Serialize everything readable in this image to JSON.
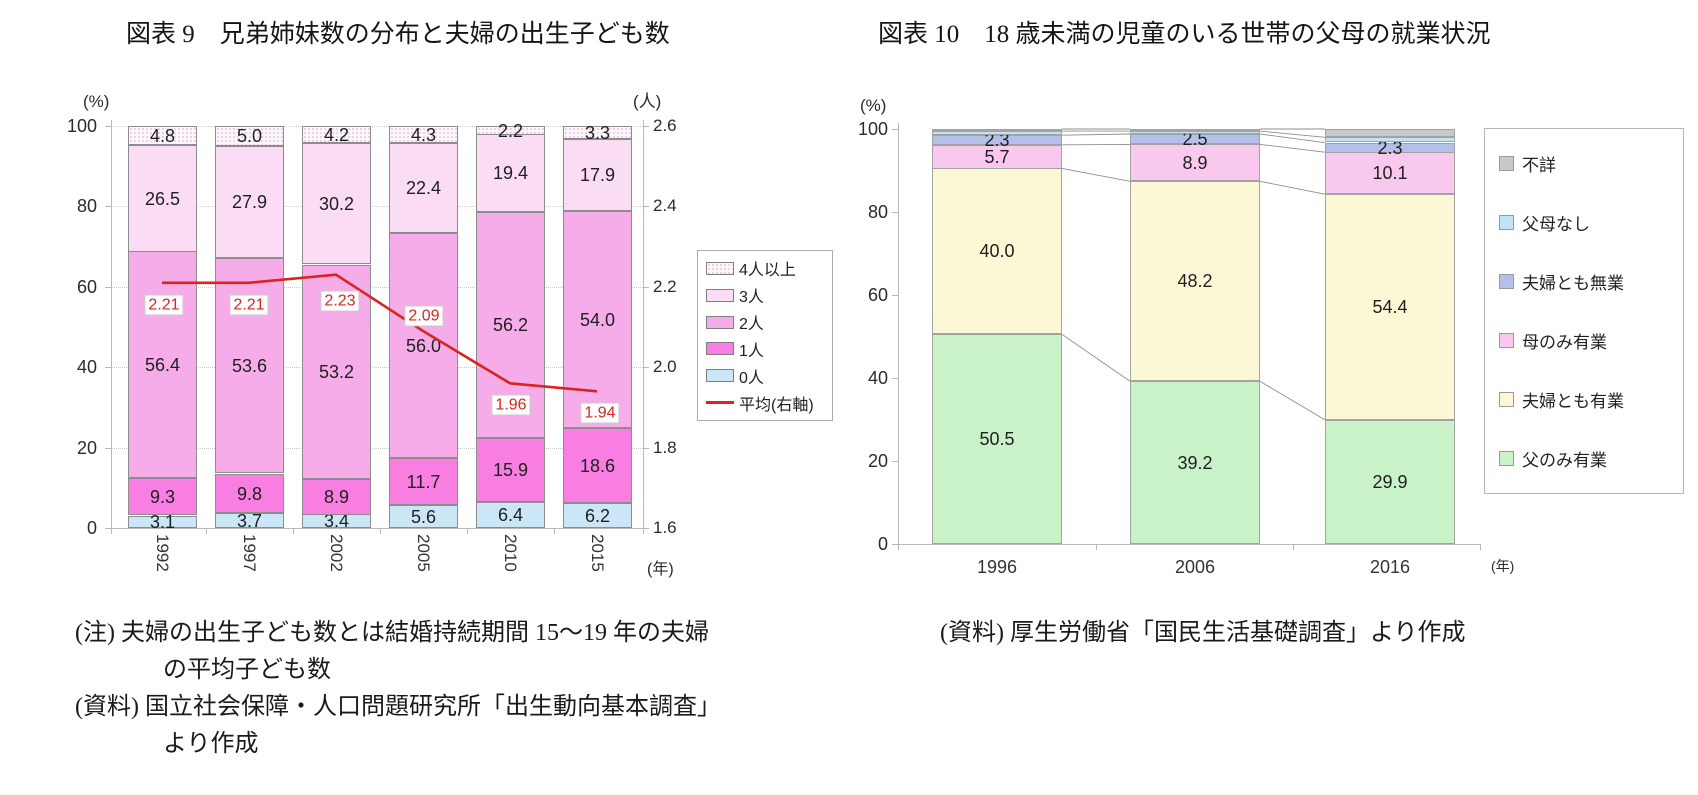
{
  "figure_left": {
    "title": "図表 9　兄弟姉妹数の分布と夫婦の出生子ども数",
    "notes": [
      {
        "text": "(注) 夫婦の出生子ども数とは結婚持続期間 15～19 年の夫婦",
        "indent": false
      },
      {
        "text": "の平均子ども数",
        "indent": true
      },
      {
        "text": "(資料) 国立社会保障・人口問題研究所「出生動向基本調査」",
        "indent": false
      },
      {
        "text": "より作成",
        "indent": true
      }
    ]
  },
  "figure_right": {
    "title": "図表 10　18 歳未満の児童のいる世帯の父母の就業状況",
    "notes": [
      {
        "text": "(資料) 厚生労働省「国民生活基礎調査」より作成",
        "indent": false
      }
    ]
  },
  "chart_data": [
    {
      "type": "bar",
      "subtype": "stacked-column-with-line",
      "title": "図表 9　兄弟姉妹数の分布と夫婦の出生子ども数",
      "categories": [
        "1992",
        "1997",
        "2002",
        "2005",
        "2010",
        "2015"
      ],
      "series": [
        {
          "name": "0人",
          "color": "#cbe7f7",
          "values": [
            3.1,
            3.7,
            3.4,
            5.6,
            6.4,
            6.2
          ],
          "labels": [
            "3.1",
            "3.7",
            "3.4",
            "5.6",
            "6.4",
            "6.2"
          ]
        },
        {
          "name": "1人",
          "color": "#f97ee2",
          "values": [
            9.3,
            9.8,
            8.9,
            11.7,
            15.9,
            18.6
          ],
          "labels": [
            "9.3",
            "9.8",
            "8.9",
            "11.7",
            "15.9",
            "18.6"
          ]
        },
        {
          "name": "2人",
          "color": "#f6ace8",
          "values": [
            56.4,
            53.6,
            53.2,
            56.0,
            56.2,
            54.0
          ],
          "labels": [
            "56.4",
            "53.6",
            "53.2",
            "56.0",
            "56.2",
            "54.0"
          ]
        },
        {
          "name": "3人",
          "color": "#fbdcf5",
          "values": [
            26.5,
            27.9,
            30.2,
            22.4,
            19.4,
            17.9
          ],
          "labels": [
            "26.5",
            "27.9",
            "30.2",
            "22.4",
            "19.4",
            "17.9"
          ]
        },
        {
          "name": "4人以上",
          "color": "#fdf7fc",
          "pattern": "dots",
          "values": [
            4.8,
            5.0,
            4.2,
            4.3,
            2.2,
            3.3
          ],
          "labels": [
            "4.8",
            "5.0",
            "4.2",
            "4.3",
            "2.2",
            "3.3"
          ]
        }
      ],
      "line_series": {
        "name": "平均(右軸)",
        "color": "#d9251f",
        "axis": "right",
        "values": [
          2.21,
          2.21,
          2.23,
          2.09,
          1.96,
          1.94
        ],
        "labels": [
          "2.21",
          "2.21",
          "2.23",
          "2.09",
          "1.96",
          "1.94"
        ]
      },
      "left_axis": {
        "unit": "(%)",
        "min": 0,
        "max": 100,
        "ticks": [
          "0",
          "20",
          "40",
          "60",
          "80",
          "100"
        ]
      },
      "right_axis": {
        "unit": "(人)",
        "min": 1.6,
        "max": 2.6,
        "ticks": [
          "1.6",
          "1.8",
          "2.0",
          "2.2",
          "2.4",
          "2.6"
        ]
      },
      "x_axis": {
        "unit": "(年)"
      },
      "grid": {
        "horizontal": "dotted"
      },
      "legend_position": "right",
      "legend": [
        {
          "label": "4人以上",
          "swatch": "box",
          "color": "#fdf7fc",
          "pattern": "dots"
        },
        {
          "label": "3人",
          "swatch": "box",
          "color": "#fbdcf5"
        },
        {
          "label": "2人",
          "swatch": "box",
          "color": "#f6ace8"
        },
        {
          "label": "1人",
          "swatch": "box",
          "color": "#f97ee2"
        },
        {
          "label": "0人",
          "swatch": "box",
          "color": "#cbe7f7"
        },
        {
          "label": "平均(右軸)",
          "swatch": "line",
          "color": "#d9251f"
        }
      ]
    },
    {
      "type": "bar",
      "subtype": "stacked-column-100-with-connectors",
      "title": "図表 10　18 歳未満の児童のいる世帯の父母の就業状況",
      "categories": [
        "1996",
        "2006",
        "2016"
      ],
      "series": [
        {
          "name": "父のみ有業",
          "color": "#c9f2c8",
          "values": [
            50.5,
            39.2,
            29.9
          ],
          "labels": [
            "50.5",
            "39.2",
            "29.9"
          ]
        },
        {
          "name": "夫婦とも有業",
          "color": "#fcf8d5",
          "values": [
            40.0,
            48.2,
            54.4
          ],
          "labels": [
            "40.0",
            "48.2",
            "54.4"
          ]
        },
        {
          "name": "母のみ有業",
          "color": "#f9c8ee",
          "values": [
            5.7,
            8.9,
            10.1
          ],
          "labels": [
            "5.7",
            "8.9",
            "10.1"
          ]
        },
        {
          "name": "夫婦とも無業",
          "color": "#b5c0ea",
          "values": [
            2.3,
            2.5,
            2.3
          ],
          "labels": [
            "2.3",
            "2.5",
            "2.3"
          ]
        },
        {
          "name": "父母なし",
          "color": "#c0e4f6",
          "values": [
            1.0,
            0.7,
            1.3
          ],
          "labels": [
            "",
            "",
            ""
          ],
          "estimated": true
        },
        {
          "name": "不詳",
          "color": "#c9c9c9",
          "values": [
            0.5,
            0.5,
            2.0
          ],
          "labels": [
            "",
            "",
            ""
          ],
          "estimated": true
        }
      ],
      "left_axis": {
        "unit": "(%)",
        "min": 0,
        "max": 100,
        "ticks": [
          "0",
          "20",
          "40",
          "60",
          "80",
          "100"
        ]
      },
      "x_axis": {
        "unit": "(年)"
      },
      "grid": {
        "horizontal": "none"
      },
      "legend_position": "right",
      "legend": [
        {
          "label": "不詳",
          "swatch": "box",
          "color": "#c9c9c9"
        },
        {
          "label": "父母なし",
          "swatch": "box",
          "color": "#c0e4f6"
        },
        {
          "label": "夫婦とも無業",
          "swatch": "box",
          "color": "#b5c0ea"
        },
        {
          "label": "母のみ有業",
          "swatch": "box",
          "color": "#f9c8ee"
        },
        {
          "label": "夫婦とも有業",
          "swatch": "box",
          "color": "#fcf8d5"
        },
        {
          "label": "父のみ有業",
          "swatch": "box",
          "color": "#c9f2c8"
        }
      ]
    }
  ]
}
